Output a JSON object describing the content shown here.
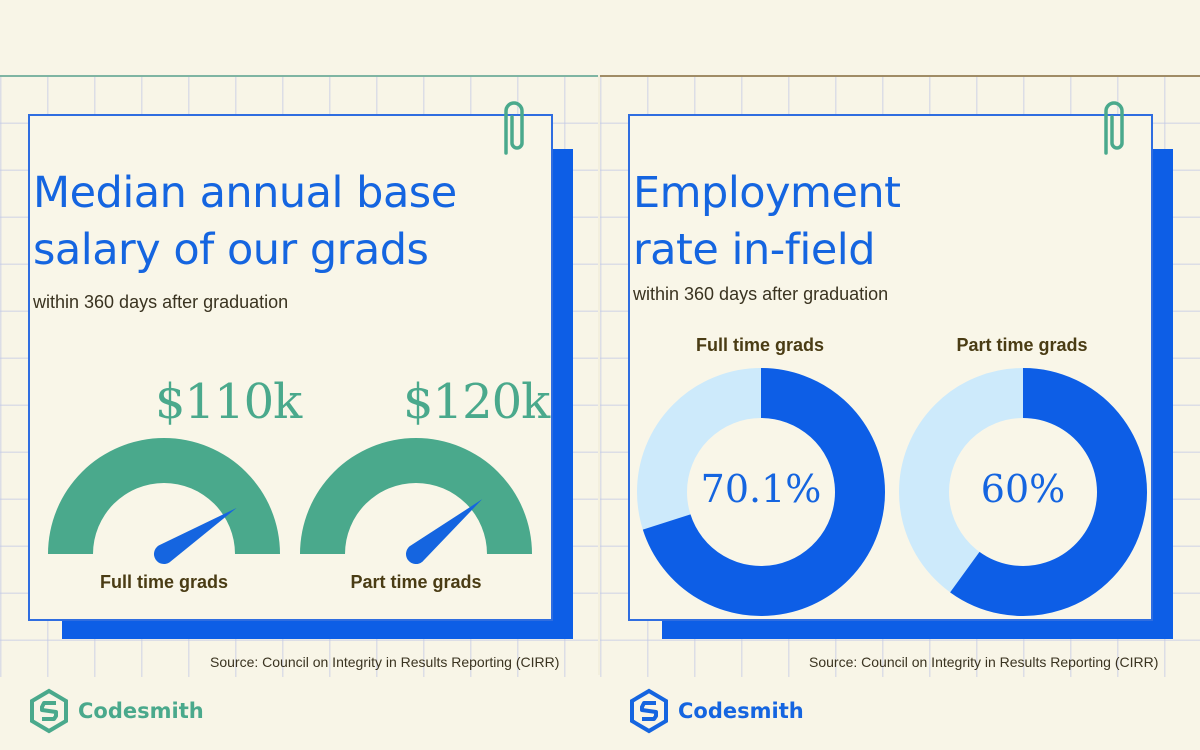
{
  "colors": {
    "accent_blue": "#0d5ee6",
    "gauge_green": "#4aa98c",
    "donut_light": "#cdeafb",
    "label_brown": "#4a3c14"
  },
  "left_panel": {
    "title_line1": "Median annual base",
    "title_line2": "salary of our grads",
    "subtitle": "within 360 days after graduation",
    "source": "Source: Council on Integrity in Results Reporting (CIRR)",
    "logo_text": "Codesmith"
  },
  "right_panel": {
    "title_line1": "Employment",
    "title_line2": "rate in-field",
    "subtitle": "within 360 days after graduation",
    "source": "Source: Council on Integrity in Results Reporting (CIRR)",
    "logo_text": "Codesmith"
  },
  "chart_data": [
    {
      "type": "gauge",
      "gauges": [
        {
          "label": "Full time grads",
          "value_label": "$110k",
          "needle_fraction": 0.82
        },
        {
          "label": "Part time grads",
          "value_label": "$120k",
          "needle_fraction": 0.78
        }
      ]
    },
    {
      "type": "pie",
      "donuts": [
        {
          "label": "Full time grads",
          "value": 70.1,
          "value_label": "70.1%"
        },
        {
          "label": "Part time grads",
          "value": 60,
          "value_label": "60%"
        }
      ]
    }
  ]
}
